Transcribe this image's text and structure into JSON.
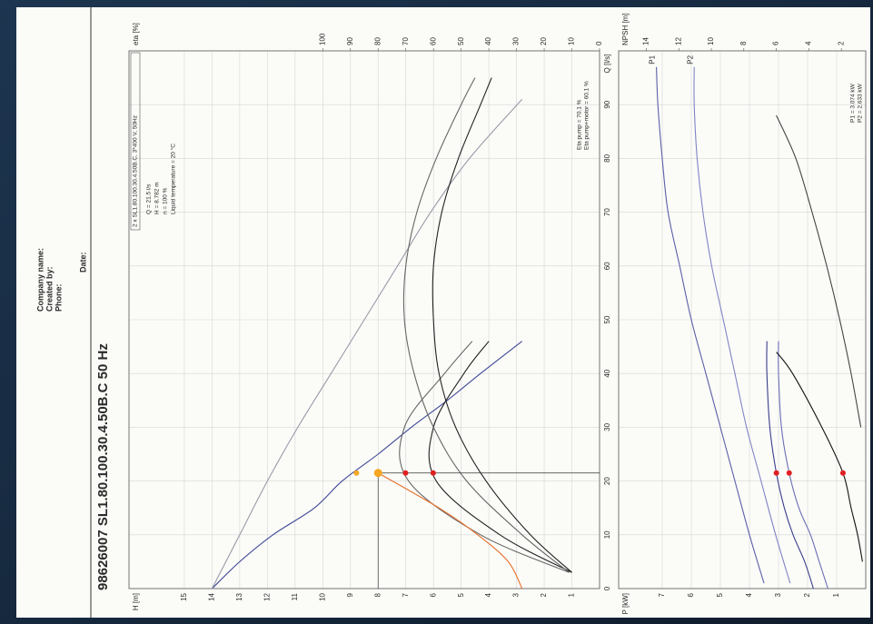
{
  "header": {
    "company_label": "Company name:",
    "created_label": "Created by:",
    "phone_label": "Phone:",
    "date_label": "Date:",
    "title": "98626007 SL1.80.100.30.4.50B.C 50 Hz"
  },
  "chart_data": [
    {
      "type": "line",
      "xlabel": "Q [l/s]",
      "ylabel": "H [m]",
      "y2label": "eta [%]",
      "xlim": [
        0,
        100
      ],
      "xticks": [
        0,
        10,
        20,
        30,
        40,
        50,
        60,
        70,
        80,
        90
      ],
      "ylim": [
        0,
        17
      ],
      "yticks": [
        1,
        2,
        3,
        4,
        5,
        6,
        7,
        8,
        9,
        10,
        11,
        12,
        13,
        14,
        15
      ],
      "y2lim": [
        0,
        170
      ],
      "y2ticks": [
        0,
        10,
        20,
        30,
        40,
        50,
        60,
        70,
        80,
        90,
        100
      ],
      "grid": true,
      "annotations": [
        "2 x SL1.80.100.30.4.50B.C, 3*400 V, 50Hz",
        "Q = 21.5 l/s",
        "H = 8.782 m",
        "n = 100 %",
        "Liquid temperature = 20 °C"
      ],
      "eta_notes": [
        "Eta pump = 70.1 %",
        "Eta pump+motor = 60.1 %"
      ],
      "series": [
        {
          "color": "#3f4796",
          "x": [
            0,
            5,
            10,
            15,
            20,
            25,
            30,
            35,
            40,
            46
          ],
          "values": [
            14.0,
            13.0,
            11.8,
            10.3,
            9.3,
            8.0,
            6.8,
            5.5,
            4.3,
            2.8
          ]
        },
        {
          "color": "#9a9aa8",
          "x": [
            0,
            10,
            20,
            30,
            40,
            50,
            60,
            70,
            80,
            91
          ],
          "values": [
            14.0,
            13.0,
            12.0,
            10.9,
            9.7,
            8.5,
            7.3,
            6.1,
            4.7,
            2.8
          ]
        },
        {
          "color": "#666666",
          "axis": "y2",
          "x": [
            3,
            10,
            20,
            30,
            40,
            46
          ],
          "values": [
            11,
            43,
            69,
            70.5,
            56,
            46
          ]
        },
        {
          "color": "#222222",
          "axis": "y2",
          "x": [
            3,
            10,
            20,
            30,
            40,
            46
          ],
          "values": [
            10,
            36,
            59,
            60,
            49,
            40
          ]
        },
        {
          "color": "#666666",
          "axis": "y2",
          "x": [
            3,
            10,
            20,
            30,
            40,
            50,
            60,
            70,
            80,
            90,
            95
          ],
          "values": [
            11,
            28,
            48,
            60,
            67,
            70.5,
            70,
            66,
            59,
            50,
            45
          ]
        },
        {
          "color": "#222222",
          "axis": "y2",
          "x": [
            3,
            10,
            20,
            30,
            40,
            50,
            60,
            70,
            80,
            90,
            95
          ],
          "values": [
            10,
            25,
            41,
            52,
            58,
            60,
            60,
            57,
            51,
            43,
            39
          ]
        },
        {
          "color": "#e8702a",
          "x": [
            0,
            5,
            10,
            15,
            21.5
          ],
          "values": [
            2.8,
            3.3,
            4.4,
            5.8,
            8.0
          ]
        },
        {
          "color": "#f5a623",
          "style": "dot",
          "x": [
            21.5
          ],
          "values": [
            8.782
          ]
        },
        {
          "color": "#f5a623",
          "style": "dot",
          "drop_lines": true,
          "x": [
            21.5
          ],
          "values": [
            8.0
          ]
        },
        {
          "color": "#e02020",
          "style": "dot",
          "axis": "y2",
          "x": [
            21.5,
            21.5
          ],
          "values": [
            70.1,
            60.1
          ]
        }
      ]
    },
    {
      "type": "line",
      "ylabel": "P [kW]",
      "y2label": "NPSH [m]",
      "xlim": [
        0,
        100
      ],
      "ylim": [
        0,
        8.5
      ],
      "yticks": [
        1,
        2,
        3,
        4,
        5,
        6,
        7
      ],
      "y2lim": [
        0.5,
        15.7
      ],
      "y2ticks": [
        2,
        4,
        6,
        8,
        10,
        12,
        14
      ],
      "grid": true,
      "annotations": [
        "P1 = 3.074 kW",
        "P2 = 2.633 kW"
      ],
      "series": [
        {
          "name": "P1",
          "color": "#5b60a8",
          "x": [
            1,
            10,
            20,
            30,
            40,
            50,
            60,
            70,
            80,
            90,
            97
          ],
          "values": [
            3.5,
            4.0,
            4.5,
            5.0,
            5.5,
            6.0,
            6.4,
            6.8,
            7.0,
            7.15,
            7.2
          ]
        },
        {
          "name": "P2",
          "color": "#8085c4",
          "x": [
            1,
            10,
            20,
            30,
            40,
            50,
            60,
            70,
            80,
            90,
            97
          ],
          "values": [
            2.6,
            3.1,
            3.6,
            4.1,
            4.5,
            4.9,
            5.3,
            5.6,
            5.8,
            5.9,
            5.9
          ]
        },
        {
          "color": "#3a3f8c",
          "x": [
            0,
            5,
            10,
            15,
            21.5,
            30,
            40,
            46
          ],
          "values": [
            1.8,
            2.1,
            2.5,
            2.8,
            3.074,
            3.3,
            3.4,
            3.4
          ]
        },
        {
          "color": "#6a6fb4",
          "x": [
            0,
            5,
            10,
            15,
            21.5,
            30,
            40,
            46
          ],
          "values": [
            1.3,
            1.6,
            1.9,
            2.3,
            2.633,
            2.9,
            3.0,
            3.0
          ]
        },
        {
          "color": "#111111",
          "axis": "y2",
          "x": [
            5,
            10,
            15,
            21.5,
            30,
            40,
            44
          ],
          "values": [
            0.7,
            1.0,
            1.4,
            1.9,
            3.2,
            5.0,
            6.0
          ]
        },
        {
          "color": "#444444",
          "axis": "y2",
          "x": [
            30,
            40,
            50,
            60,
            70,
            80,
            88
          ],
          "values": [
            0.8,
            1.4,
            2.1,
            2.9,
            3.8,
            4.8,
            6.0
          ]
        },
        {
          "color": "#e02020",
          "style": "dot",
          "x": [
            21.5,
            21.5
          ],
          "values": [
            3.074,
            2.633
          ]
        },
        {
          "color": "#e02020",
          "style": "dot",
          "axis": "y2",
          "x": [
            21.5
          ],
          "values": [
            1.9
          ]
        }
      ]
    }
  ]
}
